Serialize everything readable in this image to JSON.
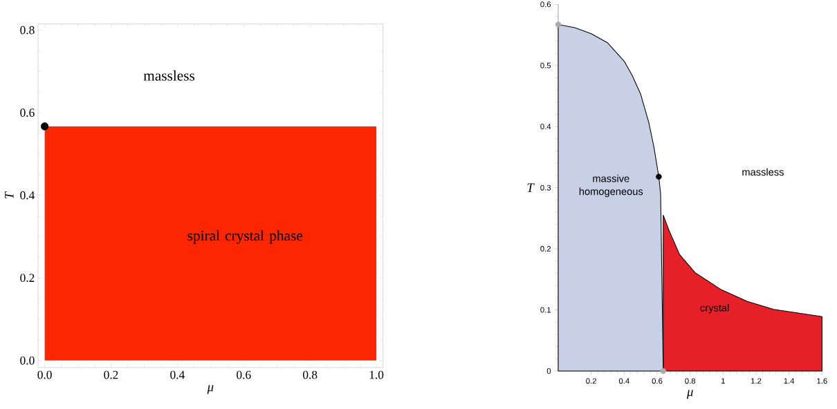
{
  "chart_data": [
    {
      "type": "area",
      "xlabel": "μ",
      "ylabel": "T",
      "xlim": [
        -0.02,
        1.02
      ],
      "ylim": [
        -0.017,
        0.815
      ],
      "xticks": [
        {
          "value": 0,
          "label": "0.0"
        },
        0.2,
        0.4,
        0.6,
        0.8,
        {
          "value": 1,
          "label": "1.0"
        }
      ],
      "yticks": [
        {
          "value": 0,
          "label": "0.0"
        },
        0.2,
        0.4,
        0.6,
        0.8
      ],
      "series": [
        {
          "color": "#fc2600",
          "x": [
            0,
            1
          ],
          "values": [
            0.567,
            0.567
          ]
        },
        {
          "type": "scatter",
          "color": "#000000",
          "x": [
            0
          ],
          "values": [
            0.567
          ]
        }
      ],
      "annotations": [
        "massless",
        "spiral crystal phase"
      ]
    },
    {
      "type": "area",
      "xlabel": "μ",
      "ylabel": "T",
      "xlim": [
        0,
        1.6
      ],
      "ylim": [
        0,
        0.6
      ],
      "xticks": [
        0.2,
        0.4,
        0.6,
        0.8,
        1,
        1.2,
        1.4,
        1.6
      ],
      "yticks": [
        0,
        0.1,
        0.2,
        0.3,
        0.4,
        0.5,
        0.6
      ],
      "line_style": "solid",
      "series": [
        {
          "color": "#e62028",
          "x": [
            0.637,
            0.672,
            0.735,
            0.83,
            0.989,
            1.147,
            1.306,
            1.6
          ],
          "values": [
            0.255,
            0.23,
            0.191,
            0.161,
            0.133,
            0.114,
            0.101,
            0.089
          ]
        },
        {
          "color": "#c8d0e6",
          "x": [
            0,
            0.1,
            0.2,
            0.3,
            0.4,
            0.45,
            0.5,
            0.55,
            0.58,
            0.61,
            0.621,
            0.637
          ],
          "values": [
            0.567,
            0.562,
            0.552,
            0.537,
            0.507,
            0.483,
            0.453,
            0.406,
            0.367,
            0.318,
            0.29,
            0
          ]
        },
        {
          "type": "scatter",
          "color": "#000000",
          "x": [
            0.61
          ],
          "values": [
            0.318
          ]
        },
        {
          "type": "scatter",
          "color": "#aaaaaa",
          "x": [
            0,
            0.637
          ],
          "values": [
            0.567,
            0
          ]
        }
      ],
      "annotations": [
        "massive homogeneous",
        "massless",
        "crystal"
      ]
    }
  ]
}
